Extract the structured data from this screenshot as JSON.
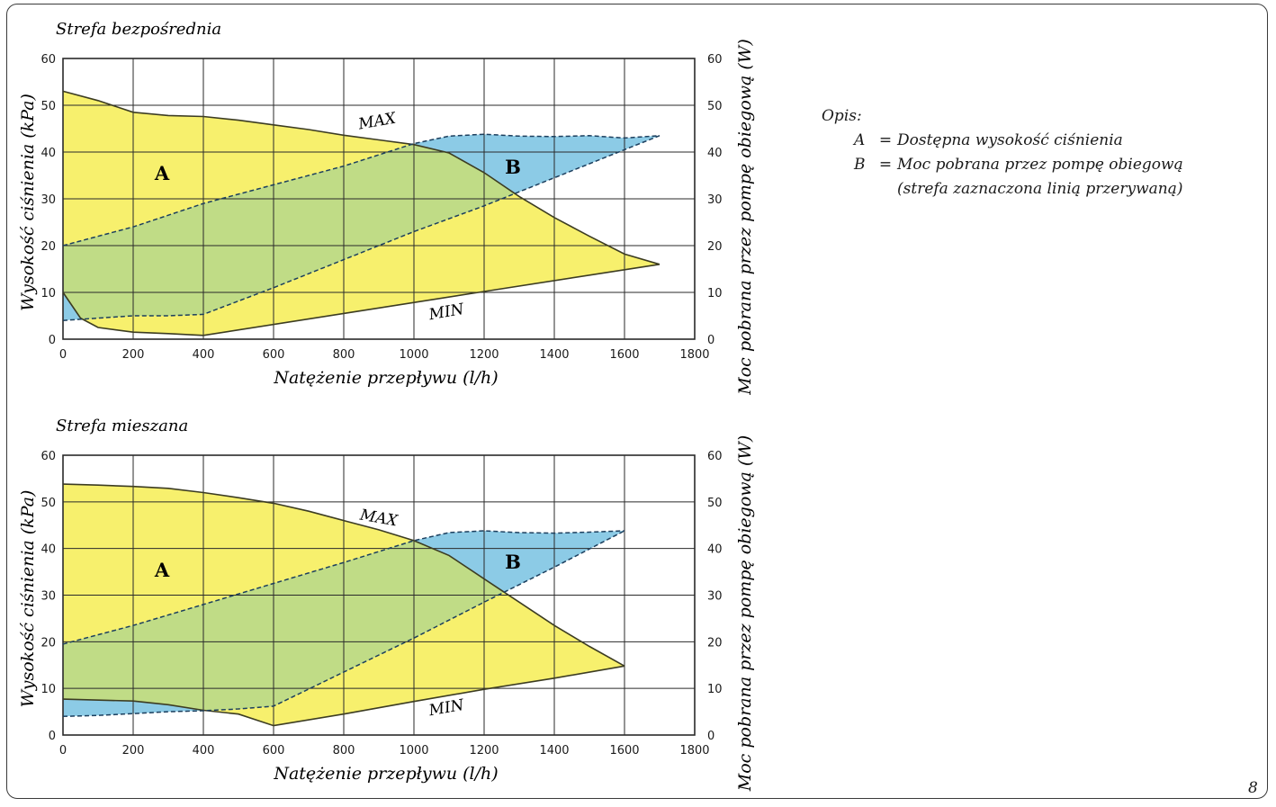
{
  "page_number": "8",
  "legend": {
    "title": "Opis:",
    "items": [
      {
        "key": "A",
        "sep": "=",
        "text": "Dostępna wysokość ciśnienia"
      },
      {
        "key": "B",
        "sep": "=",
        "text": "Moc pobrana przez pompę obiegową (strefa zaznaczona linią przerywaną)"
      }
    ]
  },
  "colors": {
    "area_a": "#f7f06d",
    "area_b": "#8ccbe6",
    "overlap": "#c0dc86",
    "outline": "#3c3c22",
    "grid": "#2a2a2a"
  },
  "chart_data": [
    {
      "type": "area",
      "title": "Strefa bezpośrednia",
      "xlabel": "Natężenie przepływu (l/h)",
      "ylabel": "Wysokość ciśnienia (kPa)",
      "y2label": "Moc pobrana przez pompę obiegową (W)",
      "xlim": [
        0,
        1800
      ],
      "ylim": [
        0,
        60
      ],
      "y2lim": [
        0,
        60
      ],
      "xticks": [
        "0",
        "200",
        "400",
        "600",
        "800",
        "1000",
        "1200",
        "1400",
        "1600",
        "1800"
      ],
      "yticks": [
        "0",
        "10",
        "20",
        "30",
        "40",
        "50",
        "60"
      ],
      "grid": true,
      "annotations": {
        "area_a": "A",
        "area_b": "B",
        "max": "MAX",
        "min": "MIN"
      },
      "series": [
        {
          "name": "MAX",
          "x": [
            0,
            100,
            200,
            300,
            400,
            500,
            600,
            700,
            800,
            900,
            1000,
            1100,
            1200,
            1300,
            1400,
            1500,
            1600,
            1700
          ],
          "values": [
            53,
            51,
            48.5,
            47.8,
            47.6,
            46.8,
            45.8,
            44.8,
            43.6,
            42.6,
            41.6,
            39.8,
            35.6,
            30.5,
            26,
            22,
            18.2,
            16
          ]
        },
        {
          "name": "MIN",
          "x": [
            0,
            50,
            100,
            200,
            300,
            400,
            800,
            1200,
            1700
          ],
          "values": [
            10,
            4.5,
            2.5,
            1.5,
            1.2,
            0.8,
            5.5,
            10.2,
            16
          ]
        },
        {
          "name": "B_upper",
          "x": [
            0,
            200,
            400,
            600,
            800,
            1000,
            1100,
            1200,
            1300,
            1400,
            1500,
            1600,
            1700
          ],
          "values": [
            20,
            24,
            29,
            33,
            37,
            41.8,
            43.4,
            43.8,
            43.4,
            43.3,
            43.5,
            43,
            43.5
          ]
        },
        {
          "name": "B_lower",
          "x": [
            0,
            100,
            200,
            300,
            400,
            600,
            800,
            1000,
            1200,
            1300,
            1500,
            1700
          ],
          "values": [
            4,
            4.5,
            5,
            5,
            5.3,
            11,
            17,
            23,
            28.5,
            31.5,
            37.5,
            43.5
          ]
        }
      ]
    },
    {
      "type": "area",
      "title": "Strefa mieszana",
      "xlabel": "Natężenie przepływu (l/h)",
      "ylabel": "Wysokość ciśnienia (kPa)",
      "y2label": "Moc pobrana przez pompę obiegową (W)",
      "xlim": [
        0,
        1800
      ],
      "ylim": [
        0,
        60
      ],
      "y2lim": [
        0,
        60
      ],
      "xticks": [
        "0",
        "200",
        "400",
        "600",
        "800",
        "1000",
        "1200",
        "1400",
        "1600",
        "1800"
      ],
      "yticks": [
        "0",
        "10",
        "20",
        "30",
        "40",
        "50",
        "60"
      ],
      "grid": true,
      "annotations": {
        "area_a": "A",
        "area_b": "B",
        "max": "MAX",
        "min": "MIN"
      },
      "series": [
        {
          "name": "MAX",
          "x": [
            0,
            100,
            200,
            300,
            400,
            500,
            600,
            700,
            800,
            900,
            1000,
            1100,
            1200,
            1300,
            1400,
            1500,
            1600
          ],
          "values": [
            53.8,
            53.6,
            53.3,
            52.9,
            52,
            50.9,
            49.7,
            48,
            46,
            44,
            41.7,
            38.5,
            33.5,
            28.5,
            23.5,
            19,
            14.8
          ]
        },
        {
          "name": "MIN",
          "x": [
            0,
            200,
            300,
            400,
            500,
            600,
            800,
            1000,
            1200,
            1400,
            1600
          ],
          "values": [
            7.7,
            7.3,
            6.5,
            5.3,
            4.5,
            2,
            4.5,
            7.2,
            9.8,
            12.2,
            14.8
          ]
        },
        {
          "name": "B_upper",
          "x": [
            0,
            200,
            400,
            600,
            800,
            1000,
            1100,
            1200,
            1300,
            1400,
            1500,
            1600
          ],
          "values": [
            19.5,
            23.5,
            28,
            32.5,
            37,
            41.7,
            43.4,
            43.8,
            43.4,
            43.3,
            43.5,
            43.8
          ]
        },
        {
          "name": "B_lower",
          "x": [
            0,
            100,
            200,
            300,
            400,
            500,
            600,
            800,
            1000,
            1200,
            1400,
            1600
          ],
          "values": [
            4,
            4.2,
            4.6,
            5,
            5.2,
            5.6,
            6.2,
            13.5,
            20.8,
            28.5,
            36,
            43.8
          ]
        }
      ]
    }
  ]
}
